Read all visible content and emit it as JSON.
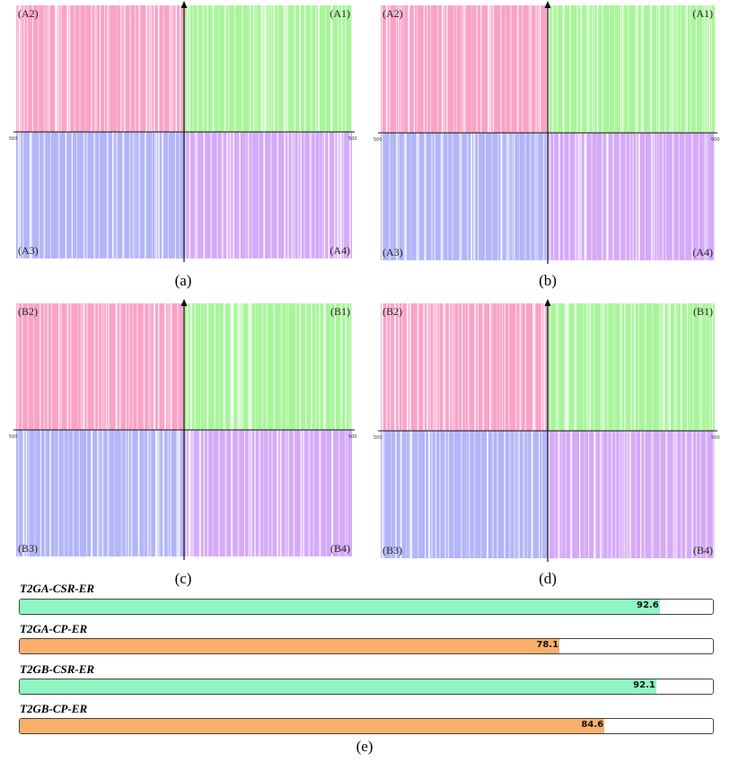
{
  "chart_data": [
    {
      "type": "quadrant-barcode",
      "panel": "(a)",
      "caption": "(a)",
      "quadrant_labels": {
        "q1": "(A1)",
        "q2": "(A2)",
        "q3": "(A3)",
        "q4": "(A4)"
      },
      "tick_labels": {
        "left": "500",
        "right": "500"
      },
      "colors": {
        "q1": "#a9f59b",
        "q2": "#f9a3c6",
        "q3": "#b2b5f7",
        "q4": "#d5aaf8"
      },
      "seed": 11
    },
    {
      "type": "quadrant-barcode",
      "panel": "(b)",
      "caption": "(b)",
      "quadrant_labels": {
        "q1": "(A1)",
        "q2": "(A2)",
        "q3": "(A3)",
        "q4": "(A4)"
      },
      "tick_labels": {
        "left": "500",
        "right": "500"
      },
      "colors": {
        "q1": "#a9f59b",
        "q2": "#f9a3c6",
        "q3": "#b2b5f7",
        "q4": "#d5aaf8"
      },
      "seed": 23
    },
    {
      "type": "quadrant-barcode",
      "panel": "(c)",
      "caption": "(c)",
      "quadrant_labels": {
        "q1": "(B1)",
        "q2": "(B2)",
        "q3": "(B3)",
        "q4": "(B4)"
      },
      "tick_labels": {
        "left": "500",
        "right": "500"
      },
      "colors": {
        "q1": "#a9f59b",
        "q2": "#f9a3c6",
        "q3": "#b2b5f7",
        "q4": "#d5aaf8"
      },
      "seed": 37
    },
    {
      "type": "quadrant-barcode",
      "panel": "(d)",
      "caption": "(d)",
      "quadrant_labels": {
        "q1": "(B1)",
        "q2": "(B2)",
        "q3": "(B3)",
        "q4": "(B4)"
      },
      "tick_labels": {
        "left": "500",
        "right": "500"
      },
      "colors": {
        "q1": "#a9f59b",
        "q2": "#f9a3c6",
        "q3": "#b2b5f7",
        "q4": "#d5aaf8"
      },
      "seed": 51
    },
    {
      "type": "bar",
      "panel": "(e)",
      "caption": "(e)",
      "orientation": "horizontal",
      "xlim": [
        0,
        100
      ],
      "categories": [
        "T2GA-CSR-ER",
        "T2GA-CP-ER",
        "T2GB-CSR-ER",
        "T2GB-CP-ER"
      ],
      "values": [
        92.6,
        78.1,
        92.1,
        84.6
      ],
      "value_labels": [
        "92.6",
        "78.1",
        "92.1",
        "84.6"
      ],
      "colors": [
        "#8ff5c2",
        "#fbb06a",
        "#8ff5c2",
        "#fbb06a"
      ]
    }
  ]
}
